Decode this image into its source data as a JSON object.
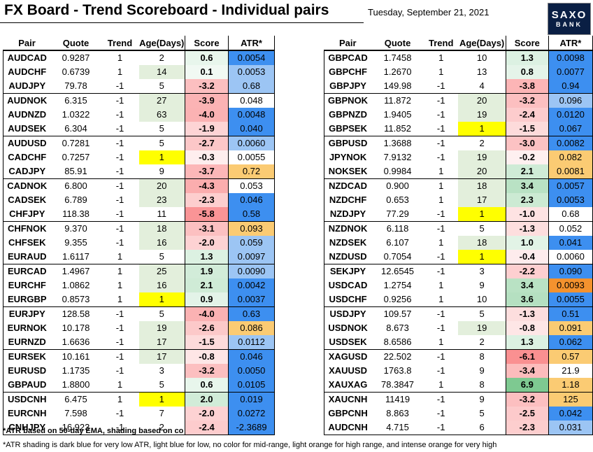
{
  "title": "FX Board - Trend Scoreboard - Individual pairs",
  "date": "Tuesday, September 21, 2021",
  "logo": {
    "line1": "SAXO",
    "line2": "BANK"
  },
  "colors": {
    "atr_dark_blue": "#3d8ff0",
    "atr_light_blue": "#9cc5f4",
    "atr_light_orange": "#fbcb73",
    "atr_intense_orange": "#f4922e",
    "age_yellow": "#ffff00",
    "age_green": "#e3efdc",
    "score_positive": "#63be7b",
    "score_negative": "#f8696b"
  },
  "chart_data": {
    "type": "table",
    "columns": [
      "Pair",
      "Quote",
      "Trend",
      "Age(Days)",
      "Score",
      "ATR*"
    ],
    "tables": [
      {
        "rows": [
          {
            "pair": "AUDCAD",
            "quote": "0.9287",
            "trend": "1",
            "age": "2",
            "score": "0.6",
            "atr": "0.0054",
            "age_shade": "",
            "atr_shade": "dark_blue"
          },
          {
            "pair": "AUDCHF",
            "quote": "0.6739",
            "trend": "1",
            "age": "14",
            "score": "0.1",
            "atr": "0.0053",
            "age_shade": "green",
            "atr_shade": "light_blue"
          },
          {
            "pair": "AUDJPY",
            "quote": "79.78",
            "trend": "-1",
            "age": "5",
            "score": "-3.2",
            "atr": "0.68",
            "age_shade": "",
            "atr_shade": "light_blue"
          },
          {
            "pair": "AUDNOK",
            "quote": "6.315",
            "trend": "-1",
            "age": "27",
            "score": "-3.9",
            "atr": "0.048",
            "age_shade": "green",
            "atr_shade": ""
          },
          {
            "pair": "AUDNZD",
            "quote": "1.0322",
            "trend": "-1",
            "age": "63",
            "score": "-4.0",
            "atr": "0.0048",
            "age_shade": "green",
            "atr_shade": "dark_blue"
          },
          {
            "pair": "AUDSEK",
            "quote": "6.304",
            "trend": "-1",
            "age": "5",
            "score": "-1.9",
            "atr": "0.040",
            "age_shade": "",
            "atr_shade": "dark_blue"
          },
          {
            "pair": "AUDUSD",
            "quote": "0.7281",
            "trend": "-1",
            "age": "5",
            "score": "-2.7",
            "atr": "0.0060",
            "age_shade": "",
            "atr_shade": "light_blue"
          },
          {
            "pair": "CADCHF",
            "quote": "0.7257",
            "trend": "-1",
            "age": "1",
            "score": "-0.3",
            "atr": "0.0055",
            "age_shade": "yellow",
            "atr_shade": ""
          },
          {
            "pair": "CADJPY",
            "quote": "85.91",
            "trend": "-1",
            "age": "9",
            "score": "-3.7",
            "atr": "0.72",
            "age_shade": "",
            "atr_shade": "light_orange"
          },
          {
            "pair": "CADNOK",
            "quote": "6.800",
            "trend": "-1",
            "age": "20",
            "score": "-4.3",
            "atr": "0.053",
            "age_shade": "green",
            "atr_shade": ""
          },
          {
            "pair": "CADSEK",
            "quote": "6.789",
            "trend": "-1",
            "age": "23",
            "score": "-2.3",
            "atr": "0.046",
            "age_shade": "green",
            "atr_shade": "dark_blue"
          },
          {
            "pair": "CHFJPY",
            "quote": "118.38",
            "trend": "-1",
            "age": "11",
            "score": "-5.8",
            "atr": "0.58",
            "age_shade": "",
            "atr_shade": "dark_blue"
          },
          {
            "pair": "CHFNOK",
            "quote": "9.370",
            "trend": "-1",
            "age": "18",
            "score": "-3.1",
            "atr": "0.093",
            "age_shade": "green",
            "atr_shade": "light_orange"
          },
          {
            "pair": "CHFSEK",
            "quote": "9.355",
            "trend": "-1",
            "age": "16",
            "score": "-2.0",
            "atr": "0.059",
            "age_shade": "green",
            "atr_shade": "light_blue"
          },
          {
            "pair": "EURAUD",
            "quote": "1.6117",
            "trend": "1",
            "age": "5",
            "score": "1.3",
            "atr": "0.0097",
            "age_shade": "",
            "atr_shade": "light_blue"
          },
          {
            "pair": "EURCAD",
            "quote": "1.4967",
            "trend": "1",
            "age": "25",
            "score": "1.9",
            "atr": "0.0090",
            "age_shade": "green",
            "atr_shade": "light_blue"
          },
          {
            "pair": "EURCHF",
            "quote": "1.0862",
            "trend": "1",
            "age": "16",
            "score": "2.1",
            "atr": "0.0042",
            "age_shade": "green",
            "atr_shade": "dark_blue"
          },
          {
            "pair": "EURGBP",
            "quote": "0.8573",
            "trend": "1",
            "age": "1",
            "score": "0.9",
            "atr": "0.0037",
            "age_shade": "yellow",
            "atr_shade": "dark_blue"
          },
          {
            "pair": "EURJPY",
            "quote": "128.58",
            "trend": "-1",
            "age": "5",
            "score": "-4.0",
            "atr": "0.63",
            "age_shade": "",
            "atr_shade": "dark_blue"
          },
          {
            "pair": "EURNOK",
            "quote": "10.178",
            "trend": "-1",
            "age": "19",
            "score": "-2.6",
            "atr": "0.086",
            "age_shade": "green",
            "atr_shade": "light_orange"
          },
          {
            "pair": "EURNZD",
            "quote": "1.6636",
            "trend": "-1",
            "age": "17",
            "score": "-1.5",
            "atr": "0.0112",
            "age_shade": "green",
            "atr_shade": "light_blue"
          },
          {
            "pair": "EURSEK",
            "quote": "10.161",
            "trend": "-1",
            "age": "17",
            "score": "-0.8",
            "atr": "0.046",
            "age_shade": "green",
            "atr_shade": "dark_blue"
          },
          {
            "pair": "EURUSD",
            "quote": "1.1735",
            "trend": "-1",
            "age": "3",
            "score": "-3.2",
            "atr": "0.0050",
            "age_shade": "",
            "atr_shade": "dark_blue"
          },
          {
            "pair": "GBPAUD",
            "quote": "1.8800",
            "trend": "1",
            "age": "5",
            "score": "0.6",
            "atr": "0.0105",
            "age_shade": "",
            "atr_shade": "dark_blue"
          },
          {
            "pair": "USDCNH",
            "quote": "6.475",
            "trend": "1",
            "age": "1",
            "score": "2.0",
            "atr": "0.019",
            "age_shade": "yellow",
            "atr_shade": "dark_blue"
          },
          {
            "pair": "EURCNH",
            "quote": "7.598",
            "trend": "-1",
            "age": "7",
            "score": "-2.0",
            "atr": "0.0272",
            "age_shade": "",
            "atr_shade": "dark_blue"
          },
          {
            "pair": "CNHJPY",
            "quote": "16.923",
            "trend": "-1",
            "age": "2",
            "score": "-2.4",
            "atr": "-2.3689",
            "age_shade": "",
            "atr_shade": "dark_blue"
          }
        ]
      },
      {
        "rows": [
          {
            "pair": "GBPCAD",
            "quote": "1.7458",
            "trend": "1",
            "age": "10",
            "score": "1.3",
            "atr": "0.0098",
            "age_shade": "",
            "atr_shade": "dark_blue"
          },
          {
            "pair": "GBPCHF",
            "quote": "1.2670",
            "trend": "1",
            "age": "13",
            "score": "0.8",
            "atr": "0.0077",
            "age_shade": "",
            "atr_shade": "dark_blue"
          },
          {
            "pair": "GBPJPY",
            "quote": "149.98",
            "trend": "-1",
            "age": "4",
            "score": "-3.8",
            "atr": "0.94",
            "age_shade": "",
            "atr_shade": "dark_blue"
          },
          {
            "pair": "GBPNOK",
            "quote": "11.872",
            "trend": "-1",
            "age": "20",
            "score": "-3.2",
            "atr": "0.096",
            "age_shade": "green",
            "atr_shade": "light_blue"
          },
          {
            "pair": "GBPNZD",
            "quote": "1.9405",
            "trend": "-1",
            "age": "19",
            "score": "-2.4",
            "atr": "0.0120",
            "age_shade": "green",
            "atr_shade": "dark_blue"
          },
          {
            "pair": "GBPSEK",
            "quote": "11.852",
            "trend": "-1",
            "age": "1",
            "score": "-1.5",
            "atr": "0.067",
            "age_shade": "yellow",
            "atr_shade": "dark_blue"
          },
          {
            "pair": "GBPUSD",
            "quote": "1.3688",
            "trend": "-1",
            "age": "2",
            "score": "-3.0",
            "atr": "0.0082",
            "age_shade": "",
            "atr_shade": "dark_blue"
          },
          {
            "pair": "JPYNOK",
            "quote": "7.9132",
            "trend": "-1",
            "age": "19",
            "score": "-0.2",
            "atr": "0.082",
            "age_shade": "green",
            "atr_shade": "light_orange"
          },
          {
            "pair": "NOKSEK",
            "quote": "0.9984",
            "trend": "1",
            "age": "20",
            "score": "2.1",
            "atr": "0.0081",
            "age_shade": "green",
            "atr_shade": "light_orange"
          },
          {
            "pair": "NZDCAD",
            "quote": "0.900",
            "trend": "1",
            "age": "18",
            "score": "3.4",
            "atr": "0.0057",
            "age_shade": "green",
            "atr_shade": "dark_blue"
          },
          {
            "pair": "NZDCHF",
            "quote": "0.653",
            "trend": "1",
            "age": "17",
            "score": "2.3",
            "atr": "0.0053",
            "age_shade": "green",
            "atr_shade": "dark_blue"
          },
          {
            "pair": "NZDJPY",
            "quote": "77.29",
            "trend": "-1",
            "age": "1",
            "score": "-1.0",
            "atr": "0.68",
            "age_shade": "yellow",
            "atr_shade": ""
          },
          {
            "pair": "NZDNOK",
            "quote": "6.118",
            "trend": "-1",
            "age": "5",
            "score": "-1.3",
            "atr": "0.052",
            "age_shade": "",
            "atr_shade": ""
          },
          {
            "pair": "NZDSEK",
            "quote": "6.107",
            "trend": "1",
            "age": "18",
            "score": "1.0",
            "atr": "0.041",
            "age_shade": "green",
            "atr_shade": "dark_blue"
          },
          {
            "pair": "NZDUSD",
            "quote": "0.7054",
            "trend": "-1",
            "age": "1",
            "score": "-0.4",
            "atr": "0.0060",
            "age_shade": "yellow",
            "atr_shade": ""
          },
          {
            "pair": "SEKJPY",
            "quote": "12.6545",
            "trend": "-1",
            "age": "3",
            "score": "-2.2",
            "atr": "0.090",
            "age_shade": "",
            "atr_shade": "dark_blue"
          },
          {
            "pair": "USDCAD",
            "quote": "1.2754",
            "trend": "1",
            "age": "9",
            "score": "3.4",
            "atr": "0.0093",
            "age_shade": "",
            "atr_shade": "intense_orange"
          },
          {
            "pair": "USDCHF",
            "quote": "0.9256",
            "trend": "1",
            "age": "10",
            "score": "3.6",
            "atr": "0.0055",
            "age_shade": "",
            "atr_shade": "dark_blue"
          },
          {
            "pair": "USDJPY",
            "quote": "109.57",
            "trend": "-1",
            "age": "5",
            "score": "-1.3",
            "atr": "0.51",
            "age_shade": "",
            "atr_shade": "dark_blue"
          },
          {
            "pair": "USDNOK",
            "quote": "8.673",
            "trend": "-1",
            "age": "19",
            "score": "-0.8",
            "atr": "0.091",
            "age_shade": "green",
            "atr_shade": "light_orange"
          },
          {
            "pair": "USDSEK",
            "quote": "8.6586",
            "trend": "1",
            "age": "2",
            "score": "1.3",
            "atr": "0.062",
            "age_shade": "",
            "atr_shade": "dark_blue"
          },
          {
            "pair": "XAGUSD",
            "quote": "22.502",
            "trend": "-1",
            "age": "8",
            "score": "-6.1",
            "atr": "0.57",
            "age_shade": "",
            "atr_shade": "light_orange"
          },
          {
            "pair": "XAUUSD",
            "quote": "1763.8",
            "trend": "-1",
            "age": "9",
            "score": "-3.4",
            "atr": "21.9",
            "age_shade": "",
            "atr_shade": ""
          },
          {
            "pair": "XAUXAG",
            "quote": "78.3847",
            "trend": "1",
            "age": "8",
            "score": "6.9",
            "atr": "1.18",
            "age_shade": "",
            "atr_shade": "light_orange"
          },
          {
            "pair": "XAUCNH",
            "quote": "11419",
            "trend": "-1",
            "age": "9",
            "score": "-3.2",
            "atr": "125",
            "age_shade": "",
            "atr_shade": "light_orange"
          },
          {
            "pair": "GBPCNH",
            "quote": "8.863",
            "trend": "-1",
            "age": "5",
            "score": "-2.5",
            "atr": "0.042",
            "age_shade": "",
            "atr_shade": "dark_blue"
          },
          {
            "pair": "AUDCNH",
            "quote": "4.715",
            "trend": "-1",
            "age": "6",
            "score": "-2.3",
            "atr": "0.031",
            "age_shade": "",
            "atr_shade": "light_blue"
          }
        ]
      }
    ]
  },
  "notes": {
    "note1": "*ATR based on 50-day EMA, shading based on co",
    "note2": "*ATR shading is dark blue for very low ATR, light blue for low, no color for mid-range, light orange for high range, and intense orange for very high"
  }
}
